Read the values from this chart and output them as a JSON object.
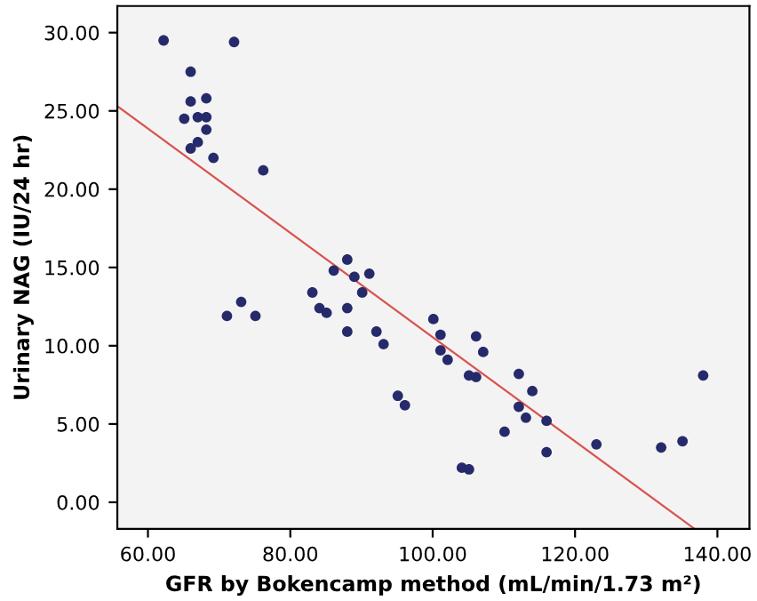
{
  "chart_data": {
    "type": "scatter",
    "xlabel": "GFR by Bokencamp method (mL/min/1.73 m²)",
    "ylabel": "Urinary NAG (IU/24 hr)",
    "xlim": [
      55.7,
      144.5
    ],
    "ylim": [
      -1.7,
      31.7
    ],
    "xticks": [
      {
        "value": 60,
        "label": "60.00"
      },
      {
        "value": 80,
        "label": "80.00"
      },
      {
        "value": 100,
        "label": "100.00"
      },
      {
        "value": 120,
        "label": "120.00"
      },
      {
        "value": 140,
        "label": "140.00"
      }
    ],
    "yticks": [
      {
        "value": 0,
        "label": "0.00"
      },
      {
        "value": 5,
        "label": "5.00"
      },
      {
        "value": 10,
        "label": "10.00"
      },
      {
        "value": 15,
        "label": "15.00"
      },
      {
        "value": 20,
        "label": "20.00"
      },
      {
        "value": 25,
        "label": "25.00"
      },
      {
        "value": 30,
        "label": "30.00"
      }
    ],
    "grid": false,
    "legend": false,
    "marker": "circle",
    "series": [
      {
        "color": "#262a6b",
        "x": [
          62.2,
          72.1,
          66.0,
          66.0,
          68.2,
          65.1,
          67.0,
          68.2,
          68.2,
          67.0,
          66.0,
          69.2,
          76.2,
          88.0,
          86.1,
          89.0,
          91.1,
          83.1,
          90.1,
          73.1,
          71.1,
          75.1,
          84.1,
          85.1,
          88.0,
          88.0,
          92.1,
          93.1,
          95.1,
          96.1,
          100.1,
          101.1,
          101.1,
          102.1,
          106.1,
          107.1,
          105.1,
          106.1,
          104.1,
          105.1,
          110.1,
          112.1,
          114.0,
          112.1,
          113.1,
          116.0,
          116.0,
          123.0,
          132.1,
          135.1,
          138.0
        ],
        "values": [
          29.5,
          29.4,
          27.5,
          25.6,
          25.8,
          24.5,
          24.6,
          24.6,
          23.8,
          23.0,
          22.6,
          22.0,
          21.2,
          15.5,
          14.8,
          14.4,
          14.6,
          13.4,
          13.4,
          12.8,
          11.9,
          11.9,
          12.4,
          12.1,
          12.4,
          10.9,
          10.9,
          10.1,
          6.8,
          6.2,
          11.7,
          10.7,
          9.7,
          9.1,
          10.6,
          9.6,
          8.1,
          8.0,
          2.2,
          2.1,
          4.5,
          8.2,
          7.1,
          6.1,
          5.4,
          5.2,
          3.2,
          3.7,
          3.5,
          3.9,
          8.1
        ]
      },
      {
        "type": "line",
        "color": "#d9534f",
        "x": [
          55.7,
          136.8
        ],
        "values": [
          25.3,
          -1.7
        ],
        "line_style": "solid",
        "marker": "none"
      }
    ]
  }
}
